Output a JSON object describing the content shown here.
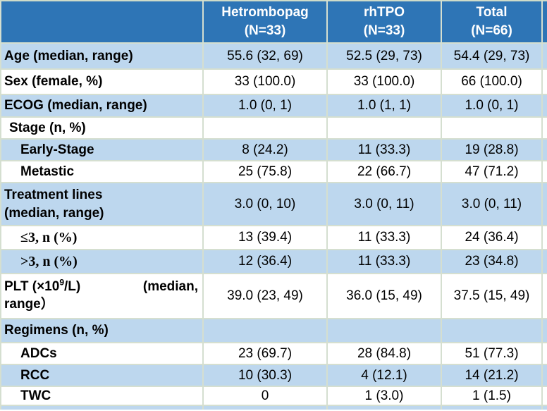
{
  "colors": {
    "header_blue": "#2e75b6",
    "stripe_blue": "#bdd7ee",
    "row_white": "#ffffff",
    "border_green": "#d5dfd0",
    "text": "#000000",
    "header_text": "#ffffff"
  },
  "table": {
    "header": [
      {
        "line1": "Hetrombopag",
        "line2": "(N=33)"
      },
      {
        "line1": "rhTPO",
        "line2": "(N=33)"
      },
      {
        "line1": "Total",
        "line2": "(N=66)"
      }
    ],
    "rows": [
      {
        "label": "Age (median, range)",
        "values": [
          "55.6 (32, 69)",
          "52.5 (29, 73)",
          "54.4 (29, 73)"
        ]
      },
      {
        "label": "Sex (female, %)",
        "values": [
          "33 (100.0)",
          "33 (100.0)",
          "66 (100.0)"
        ]
      },
      {
        "label": "ECOG (median, range)",
        "values": [
          "1.0 (0, 1)",
          "1.0 (1, 1)",
          "1.0 (0, 1)"
        ]
      },
      {
        "label": "Stage (n, %)",
        "values": [
          "",
          "",
          ""
        ]
      },
      {
        "label": "Early-Stage",
        "values": [
          "8 (24.2)",
          "11 (33.3)",
          "19 (28.8)"
        ]
      },
      {
        "label": "Metastic",
        "values": [
          "25 (75.8)",
          "22 (66.7)",
          "47 (71.2)"
        ]
      },
      {
        "label_line1": "Treatment lines",
        "label_line2": "(median, range)",
        "values": [
          "3.0 (0, 10)",
          "3.0 (0, 11)",
          "3.0 (0, 11)"
        ]
      },
      {
        "label": "≤3, n (%)",
        "values": [
          "13 (39.4)",
          "11 (33.3)",
          "24 (36.4)"
        ]
      },
      {
        "label": ">3, n (%)",
        "values": [
          "12 (36.4)",
          "11 (33.3)",
          "23 (34.8)"
        ]
      },
      {
        "label_parts": {
          "pre": "PLT (×10",
          "sup": "9",
          "post": "/L)",
          "tail": "(median,",
          "line2": "range）"
        },
        "values": [
          "39.0 (23, 49)",
          "36.0 (15, 49)",
          "37.5 (15, 49)"
        ]
      },
      {
        "label": "Regimens (n, %)",
        "values": [
          "",
          "",
          ""
        ]
      },
      {
        "label": "ADCs",
        "values": [
          "23 (69.7)",
          "28 (84.8)",
          "51 (77.3)"
        ]
      },
      {
        "label": "RCC",
        "values": [
          "10 (30.3)",
          "4 (12.1)",
          "14 (21.2)"
        ]
      },
      {
        "label": "TWC",
        "values": [
          "0",
          "1 (3.0)",
          "1 (1.5)"
        ]
      }
    ]
  }
}
